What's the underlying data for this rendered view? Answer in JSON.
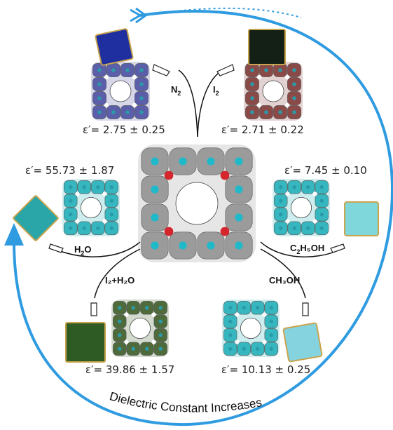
{
  "caption": "Dielectric Constant Increases",
  "center": {
    "name": "host framework"
  },
  "branches": [
    {
      "id": "n2",
      "label": "N",
      "sub": "2",
      "tail": "",
      "epsilon": "ε′= 2.75 ± 0.25",
      "framework_color": "#5b5ea8",
      "crystal_color": "#1f2fa0"
    },
    {
      "id": "i2",
      "label": "I",
      "sub": "2",
      "tail": "",
      "epsilon": "ε′= 2.71 ± 0.22",
      "framework_color": "#8a4a48",
      "crystal_color": "#142015"
    },
    {
      "id": "ethanol",
      "label": "C",
      "sub": "2",
      "tail": "H₅OH",
      "epsilon": "ε′= 7.45 ± 0.10",
      "framework_color": "#36b7bf",
      "crystal_color": "#7fd7dc"
    },
    {
      "id": "h2o",
      "label": "H",
      "sub": "2",
      "tail": "O",
      "epsilon": "ε′= 55.73 ± 1.87",
      "framework_color": "#36b7bf",
      "crystal_color": "#2aa6a8"
    },
    {
      "id": "i2h2o",
      "label": "I₂+H₂O",
      "sub": "",
      "tail": "",
      "epsilon": "ε′= 39.86 ± 1.57",
      "framework_color": "#4f6b3c",
      "crystal_color": "#2e5a24"
    },
    {
      "id": "methanol",
      "label": "CH₃OH",
      "sub": "",
      "tail": "",
      "epsilon": "ε′= 10.13 ± 0.25",
      "framework_color": "#36b7bf",
      "crystal_color": "#84d3df"
    }
  ],
  "colors": {
    "arrow": "#2f9be0",
    "framework_gray": "#9b9b9b",
    "node_cyan": "#1fb9c9",
    "node_red": "#d4262c"
  }
}
